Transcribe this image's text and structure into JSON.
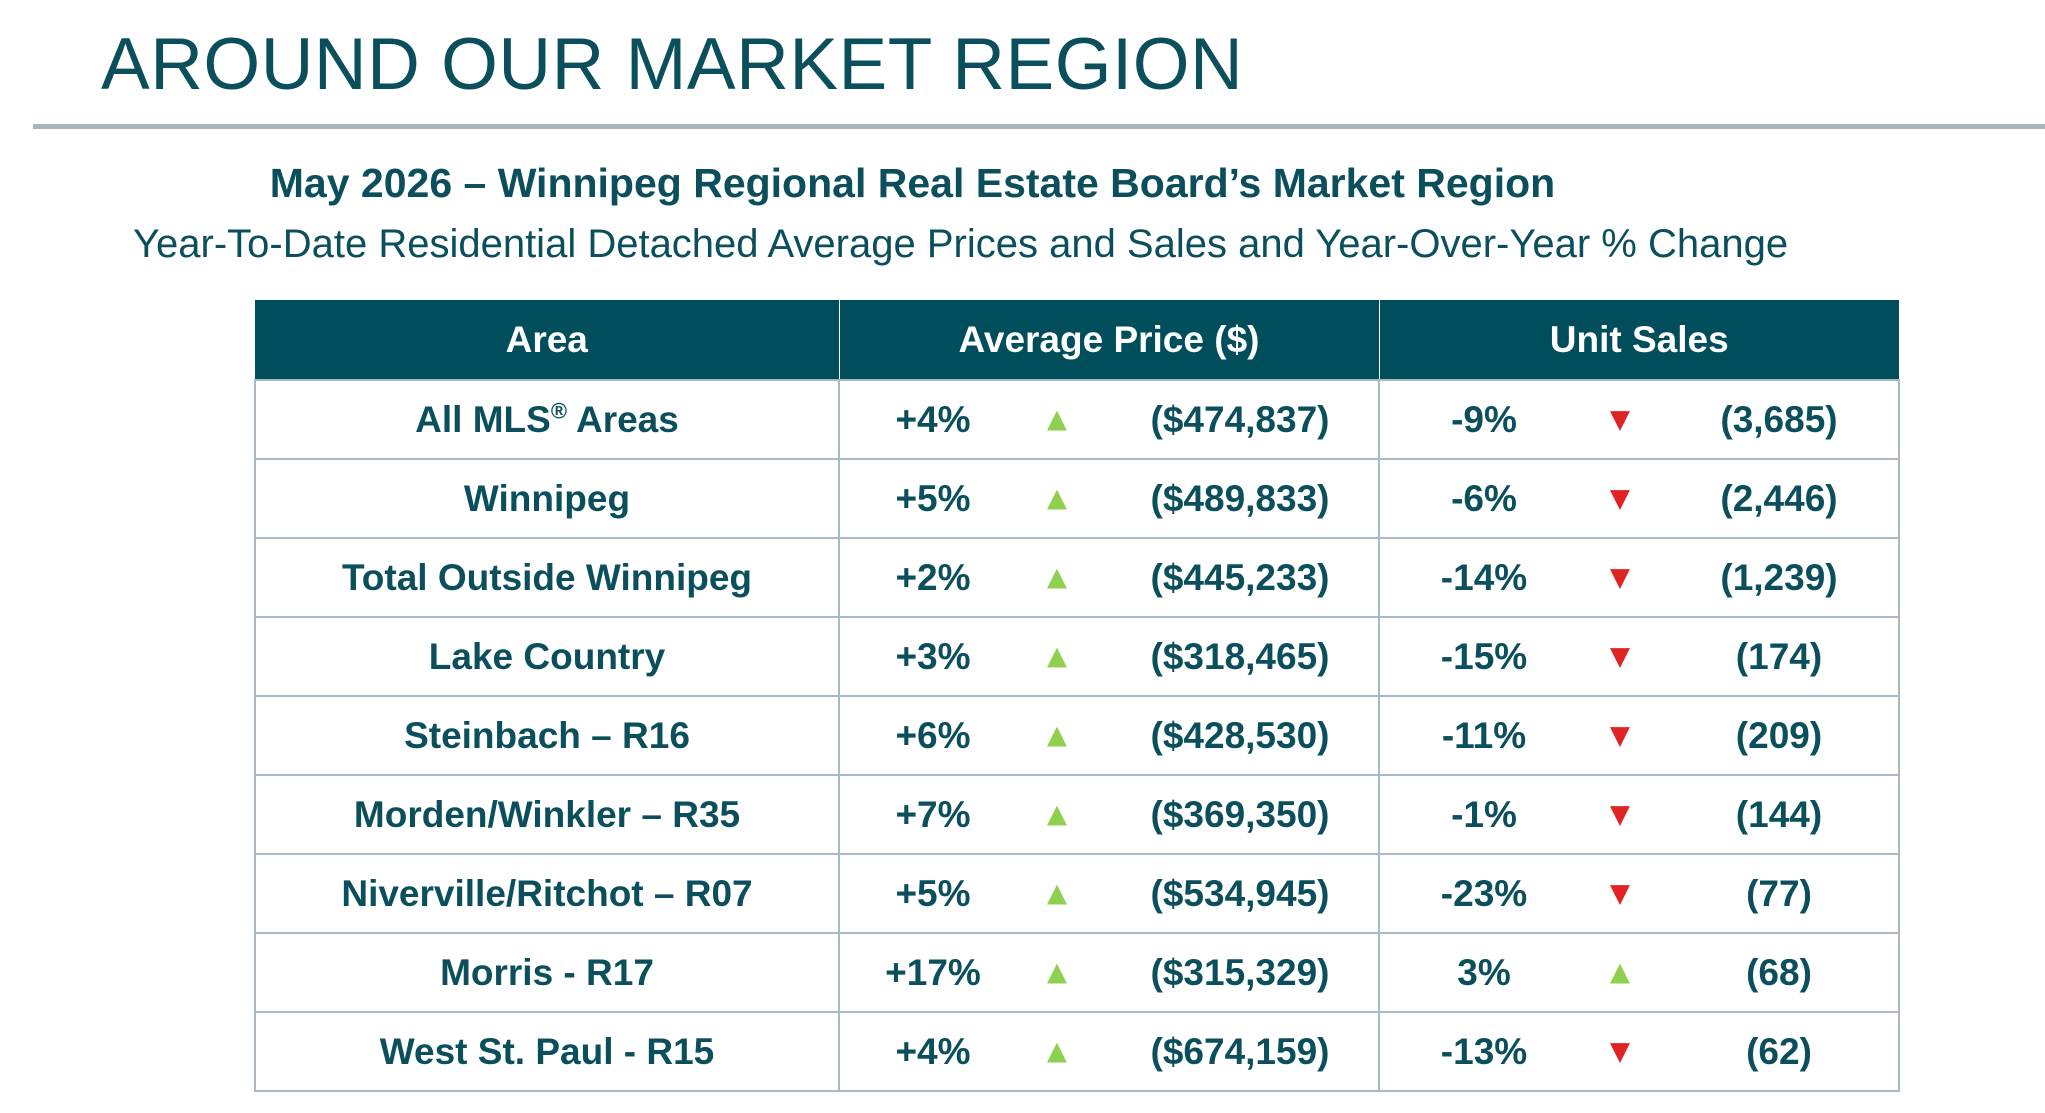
{
  "header": {
    "title": "AROUND OUR MARKET REGION"
  },
  "report": {
    "heading": "May 2026 – Winnipeg Regional Real Estate Board’s Market Region",
    "subheading": "Year-To-Date Residential Detached Average Prices and Sales and Year-Over-Year % Change"
  },
  "table": {
    "headers": {
      "area": "Area",
      "price": "Average Price ($)",
      "sales": "Unit Sales"
    },
    "colors": {
      "header_bg": "#004d5b",
      "text": "#0b4f5c",
      "up": "#8fd14f",
      "down": "#e02424"
    },
    "rows": [
      {
        "area": "All MLS",
        "area_mark": "®",
        "area_suffix": " Areas",
        "price_change": "+4%",
        "price_dir": "up",
        "price": "($474,837)",
        "sales_change": "-9%",
        "sales_dir": "down",
        "sales": "(3,685)"
      },
      {
        "area": "Winnipeg",
        "price_change": "+5%",
        "price_dir": "up",
        "price": "($489,833)",
        "sales_change": "-6%",
        "sales_dir": "down",
        "sales": "(2,446)"
      },
      {
        "area": "Total Outside Winnipeg",
        "price_change": "+2%",
        "price_dir": "up",
        "price": "($445,233)",
        "sales_change": "-14%",
        "sales_dir": "down",
        "sales": "(1,239)"
      },
      {
        "area": "Lake Country",
        "price_change": "+3%",
        "price_dir": "up",
        "price": "($318,465)",
        "sales_change": "-15%",
        "sales_dir": "down",
        "sales": "(174)"
      },
      {
        "area": "Steinbach – R16",
        "price_change": "+6%",
        "price_dir": "up",
        "price": "($428,530)",
        "sales_change": "-11%",
        "sales_dir": "down",
        "sales": "(209)"
      },
      {
        "area": "Morden/Winkler – R35",
        "price_change": "+7%",
        "price_dir": "up",
        "price": "($369,350)",
        "sales_change": "-1%",
        "sales_dir": "down",
        "sales": "(144)"
      },
      {
        "area": "Niverville/Ritchot – R07",
        "price_change": "+5%",
        "price_dir": "up",
        "price": "($534,945)",
        "sales_change": "-23%",
        "sales_dir": "down",
        "sales": "(77)"
      },
      {
        "area": "Morris - R17",
        "price_change": "+17%",
        "price_dir": "up",
        "price": "($315,329)",
        "sales_change": "3%",
        "sales_dir": "up",
        "sales": "(68)"
      },
      {
        "area": "West St. Paul - R15",
        "price_change": "+4%",
        "price_dir": "up",
        "price": "($674,159)",
        "sales_change": "-13%",
        "sales_dir": "down",
        "sales": "(62)"
      }
    ]
  }
}
